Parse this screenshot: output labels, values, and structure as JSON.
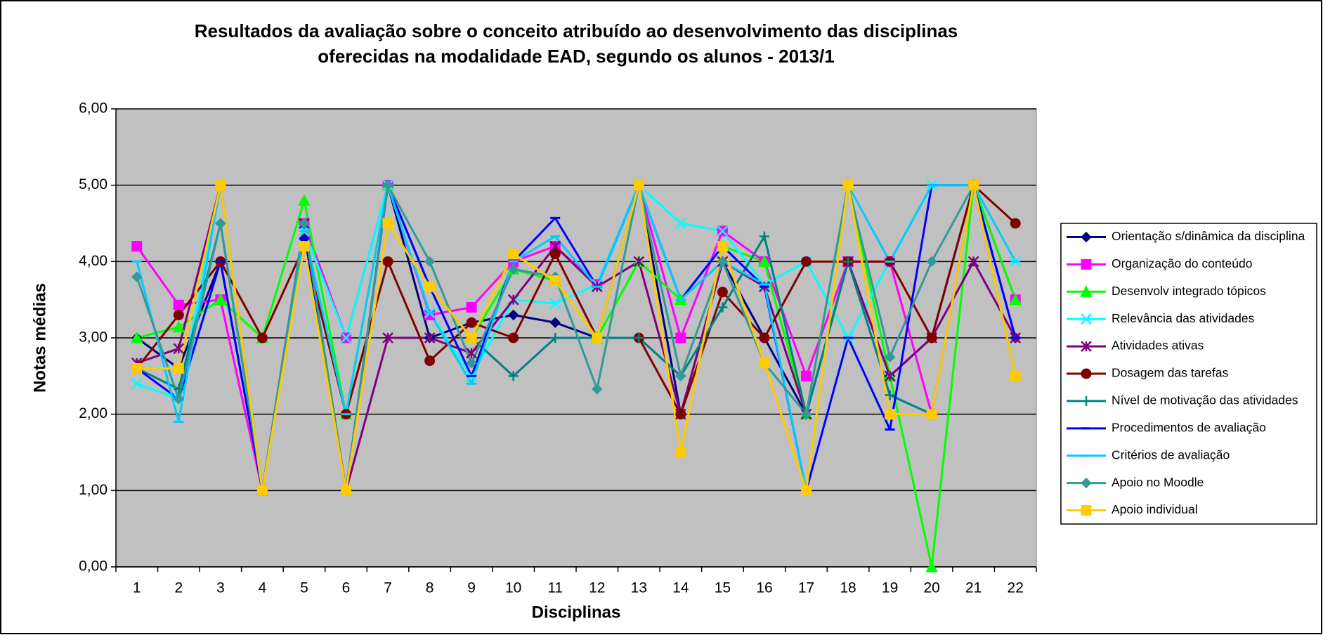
{
  "chart_data": {
    "type": "line",
    "title": [
      "Resultados da avaliação sobre o conceito atribuído ao desenvolvimento das disciplinas",
      "oferecidas na modalidade EAD, segundo os alunos - 2013/1"
    ],
    "x_label": "Disciplinas",
    "y_label": "Notas médias",
    "categories": [
      "1",
      "2",
      "3",
      "4",
      "5",
      "6",
      "7",
      "8",
      "9",
      "10",
      "11",
      "12",
      "13",
      "14",
      "15",
      "16",
      "17",
      "18",
      "19",
      "20",
      "21",
      "22"
    ],
    "ylim": [
      0,
      6
    ],
    "yticks": [
      {
        "value": 0,
        "label": "0,00"
      },
      {
        "value": 1,
        "label": "1,00"
      },
      {
        "value": 2,
        "label": "2,00"
      },
      {
        "value": 3,
        "label": "3,00"
      },
      {
        "value": 4,
        "label": "4,00"
      },
      {
        "value": 5,
        "label": "5,00"
      },
      {
        "value": 6,
        "label": "6,00"
      }
    ],
    "grid": true,
    "plot_background": "#c0c0c0",
    "legend": "right",
    "series": [
      {
        "name": "Orientação s/dinâmica da disciplina",
        "color": "#000080",
        "marker": "diamond",
        "values": [
          3.0,
          2.6,
          4.0,
          1.0,
          4.3,
          1.0,
          5.0,
          3.0,
          3.2,
          3.3,
          3.2,
          3.0,
          5.0,
          2.0,
          4.0,
          3.0,
          2.0,
          4.0,
          2.5,
          3.0,
          5.0,
          3.0
        ]
      },
      {
        "name": "Organização do conteúdo",
        "color": "#ff00ff",
        "marker": "square",
        "values": [
          4.2,
          3.43,
          3.5,
          1.0,
          4.5,
          3.0,
          5.0,
          3.3,
          3.4,
          4.0,
          4.2,
          3.7,
          5.0,
          3.0,
          4.4,
          4.0,
          2.5,
          4.0,
          4.0,
          2.0,
          5.0,
          3.5
        ]
      },
      {
        "name": "Desenvolv integrado tópicos",
        "color": "#00ff00",
        "marker": "triangle",
        "values": [
          3.0,
          3.14,
          3.5,
          3.0,
          4.8,
          2.0,
          5.0,
          3.67,
          3.0,
          3.9,
          3.75,
          3.0,
          4.0,
          3.5,
          4.2,
          4.0,
          2.0,
          5.0,
          2.5,
          0.0,
          5.0,
          3.5
        ]
      },
      {
        "name": "Relevância das atividades",
        "color": "#00ffff",
        "marker": "x",
        "values": [
          2.4,
          2.2,
          5.0,
          1.0,
          4.4,
          3.0,
          5.0,
          3.33,
          2.5,
          3.5,
          3.45,
          3.7,
          5.0,
          4.5,
          4.4,
          3.7,
          4.0,
          3.0,
          4.0,
          5.0,
          5.0,
          4.0
        ]
      },
      {
        "name": "Atividades ativas",
        "color": "#800080",
        "marker": "star",
        "values": [
          2.67,
          2.86,
          5.0,
          1.0,
          4.5,
          1.0,
          3.0,
          3.0,
          2.8,
          3.5,
          4.2,
          3.67,
          4.0,
          2.0,
          4.0,
          3.67,
          2.0,
          4.0,
          2.5,
          3.0,
          4.0,
          3.0
        ]
      },
      {
        "name": "Dosagem das tarefas",
        "color": "#800000",
        "marker": "circle",
        "values": [
          2.6,
          3.3,
          4.0,
          3.0,
          4.2,
          2.0,
          4.0,
          2.7,
          3.2,
          3.0,
          4.1,
          3.0,
          3.0,
          2.0,
          3.6,
          3.0,
          4.0,
          4.0,
          4.0,
          3.0,
          5.0,
          4.5
        ]
      },
      {
        "name": "Nível de motivação das atividades",
        "color": "#008080",
        "marker": "plus",
        "values": [
          2.6,
          2.33,
          4.5,
          1.0,
          4.5,
          1.0,
          5.0,
          3.67,
          3.0,
          2.5,
          3.0,
          3.0,
          3.0,
          2.5,
          3.4,
          4.33,
          2.0,
          4.0,
          2.25,
          2.0,
          5.0,
          2.5
        ]
      },
      {
        "name": "Procedimentos de avaliação",
        "color": "#0000ff",
        "marker": "dash",
        "values": [
          2.6,
          2.2,
          4.0,
          1.0,
          4.3,
          1.0,
          5.0,
          3.67,
          2.5,
          4.0,
          4.57,
          3.67,
          5.0,
          3.5,
          4.2,
          3.67,
          1.0,
          3.0,
          1.8,
          5.0,
          5.0,
          3.0
        ]
      },
      {
        "name": "Critérios de avaliação",
        "color": "#00ccff",
        "marker": "dash",
        "values": [
          4.0,
          1.9,
          5.0,
          1.0,
          4.4,
          2.0,
          5.0,
          3.33,
          2.4,
          4.0,
          4.33,
          3.67,
          5.0,
          3.5,
          4.0,
          3.7,
          1.0,
          5.0,
          4.0,
          5.0,
          5.0,
          4.0
        ]
      },
      {
        "name": "Apoio no Moodle",
        "color": "#339999",
        "marker": "diamond",
        "values": [
          3.8,
          2.2,
          4.5,
          1.0,
          4.5,
          1.0,
          5.0,
          4.0,
          2.67,
          3.9,
          3.8,
          2.33,
          5.0,
          2.5,
          4.0,
          2.67,
          2.0,
          5.0,
          2.75,
          4.0,
          5.0,
          2.5
        ]
      },
      {
        "name": "Apoio individual",
        "color": "#ffcc00",
        "marker": "square",
        "values": [
          2.6,
          2.6,
          5.0,
          1.0,
          4.2,
          1.0,
          4.5,
          3.67,
          3.0,
          4.1,
          3.75,
          3.0,
          5.0,
          1.5,
          4.2,
          2.67,
          1.0,
          5.0,
          2.0,
          2.0,
          5.0,
          2.5
        ]
      }
    ]
  }
}
